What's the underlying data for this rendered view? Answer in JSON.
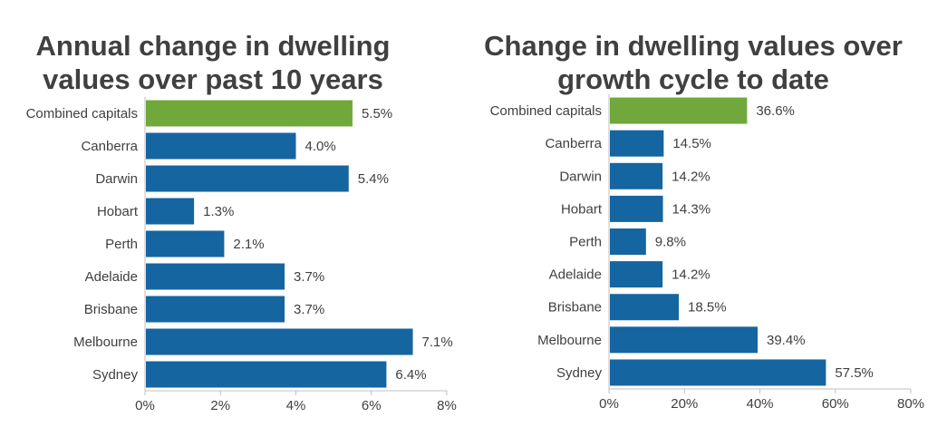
{
  "chart_data": [
    {
      "type": "bar",
      "orientation": "horizontal",
      "title": "Annual change in dwelling values over past 10 years",
      "categories": [
        "Combined capitals",
        "Canberra",
        "Darwin",
        "Hobart",
        "Perth",
        "Adelaide",
        "Brisbane",
        "Melbourne",
        "Sydney"
      ],
      "values": [
        5.5,
        4.0,
        5.4,
        1.3,
        2.1,
        3.7,
        3.7,
        7.1,
        6.4
      ],
      "value_labels": [
        "5.5%",
        "4.0%",
        "5.4%",
        "1.3%",
        "2.1%",
        "3.7%",
        "3.7%",
        "7.1%",
        "6.4%"
      ],
      "xlim": [
        0,
        8
      ],
      "xticks": [
        0,
        2,
        4,
        6,
        8
      ],
      "xtick_labels": [
        "0%",
        "2%",
        "4%",
        "6%",
        "8%"
      ],
      "xlabel": "",
      "ylabel": "",
      "highlight_color": "#70a83c",
      "bar_color": "#1565a0",
      "highlight_category": "Combined capitals",
      "grid": false,
      "legend": "none"
    },
    {
      "type": "bar",
      "orientation": "horizontal",
      "title": "Change in dwelling values over growth cycle to date",
      "categories": [
        "Combined capitals",
        "Canberra",
        "Darwin",
        "Hobart",
        "Perth",
        "Adelaide",
        "Brisbane",
        "Melbourne",
        "Sydney"
      ],
      "values": [
        36.6,
        14.5,
        14.2,
        14.3,
        9.8,
        14.2,
        18.5,
        39.4,
        57.5
      ],
      "value_labels": [
        "36.6%",
        "14.5%",
        "14.2%",
        "14.3%",
        "9.8%",
        "14.2%",
        "18.5%",
        "39.4%",
        "57.5%"
      ],
      "xlim": [
        0,
        80
      ],
      "xticks": [
        0,
        20,
        40,
        60,
        80
      ],
      "xtick_labels": [
        "0%",
        "20%",
        "40%",
        "60%",
        "80%"
      ],
      "xlabel": "",
      "ylabel": "",
      "highlight_color": "#70a83c",
      "bar_color": "#1565a0",
      "highlight_category": "Combined capitals",
      "grid": false,
      "legend": "none"
    }
  ],
  "titles": {
    "left_line1": "Annual change in dwelling",
    "left_line2": "values over past 10 years",
    "right_line1": "Change in dwelling values over",
    "right_line2": "growth cycle to date"
  }
}
